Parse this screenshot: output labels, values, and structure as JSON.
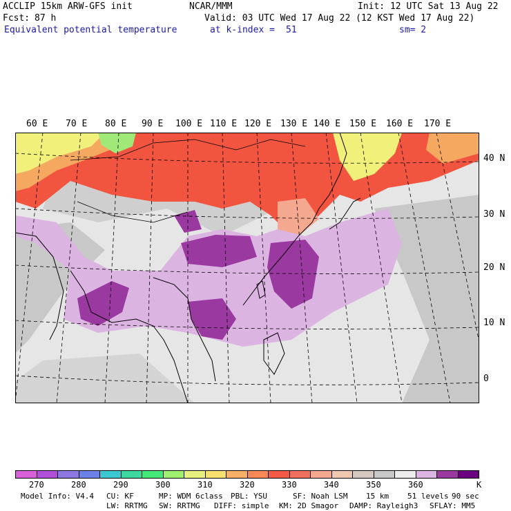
{
  "header": {
    "model": "ACCLIP 15km ARW-GFS init",
    "center": "NCAR/MMM",
    "init": "Init: 12 UTC Sat 13 Aug 22",
    "fcst_label": "Fcst:",
    "fcst_value": "87 h",
    "valid": "Valid: 03 UTC Wed 17 Aug 22 (12 KST Wed 17 Aug 22)",
    "field": "Equivalent potential temperature",
    "level": "at k-index =",
    "level_value": "51",
    "smoothing": "sm= 2"
  },
  "map": {
    "longitude_labels": [
      "60 E",
      "70 E",
      "80 E",
      "90 E",
      "100 E",
      "110 E",
      "120 E",
      "130 E",
      "140 E",
      "150 E",
      "160 E",
      "170 E"
    ],
    "latitude_labels": [
      "40 N",
      "30 N",
      "20 N",
      "10 N",
      "0"
    ],
    "colors": {
      "warm_band": "#f2553f",
      "orange": "#f5a860",
      "yellow": "#f0f07a",
      "green": "#a0e878",
      "gray": "#c8c8c8",
      "lightgray": "#e6e6e6",
      "lilac": "#dcb4e2",
      "purple": "#9a3aa0"
    }
  },
  "colorbar": {
    "unit": "K",
    "tick_labels": [
      "270",
      "280",
      "290",
      "300",
      "310",
      "320",
      "330",
      "340",
      "350",
      "360"
    ],
    "swatches": [
      "#d860d8",
      "#b050d8",
      "#8c78e0",
      "#6a82e8",
      "#3cc8d0",
      "#3cd8a0",
      "#44e878",
      "#a0f070",
      "#e8f080",
      "#f8e070",
      "#f8b068",
      "#f88858",
      "#f25a48",
      "#f07060",
      "#f4a890",
      "#f0c8b0",
      "#d4c8c0",
      "#c8c8c8",
      "#ececec",
      "#dcb4e2",
      "#9a3aa0",
      "#6a0080"
    ]
  },
  "footer": {
    "line1": [
      "Model Info: V4.4",
      "CU: KF",
      "MP: WDM 6class",
      "PBL: YSU",
      "SF: Noah LSM",
      "15 km",
      "51 levels",
      "90 sec"
    ],
    "line2": [
      "LW: RRTMG",
      "SW: RRTMG",
      "DIFF: simple",
      "KM: 2D Smagor",
      "DAMP: Rayleigh3",
      "SFLAY: MM5"
    ]
  }
}
